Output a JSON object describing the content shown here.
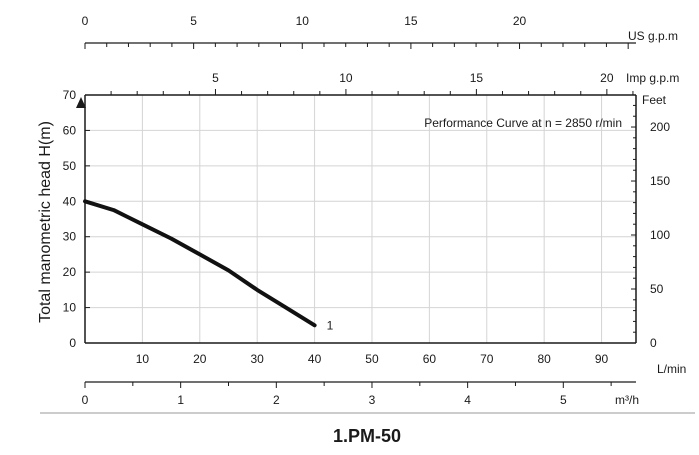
{
  "chart_data": {
    "type": "line",
    "title": "Performance Curve at n = 2850 r/min",
    "caption": "1.PM-50",
    "ylabel": "Total manometric head H(m)",
    "ylim": [
      0,
      70
    ],
    "yticks": [
      0,
      10,
      20,
      30,
      40,
      50,
      60,
      70
    ],
    "xlim": [
      0,
      96
    ],
    "grid": true,
    "x_axes": [
      {
        "unit": "L/min",
        "ticks": [
          10,
          20,
          30,
          40,
          50,
          60,
          70,
          80,
          90
        ]
      },
      {
        "unit": "m³/h",
        "ticks": [
          0,
          1,
          2,
          3,
          4,
          5
        ]
      },
      {
        "unit": "Imp g.p.m",
        "ticks": [
          5,
          10,
          15,
          20
        ]
      },
      {
        "unit": "US g.p.m",
        "ticks": [
          0,
          5,
          10,
          15,
          20
        ]
      }
    ],
    "y2_axis": {
      "unit": "Feet",
      "ticks": [
        0,
        50,
        100,
        150,
        200
      ]
    },
    "series": [
      {
        "name": "1",
        "x": [
          0,
          5,
          10,
          15,
          20,
          25,
          30,
          35,
          40
        ],
        "y": [
          40,
          37.5,
          33.5,
          29.5,
          25,
          20.5,
          15,
          10,
          5
        ]
      }
    ]
  }
}
